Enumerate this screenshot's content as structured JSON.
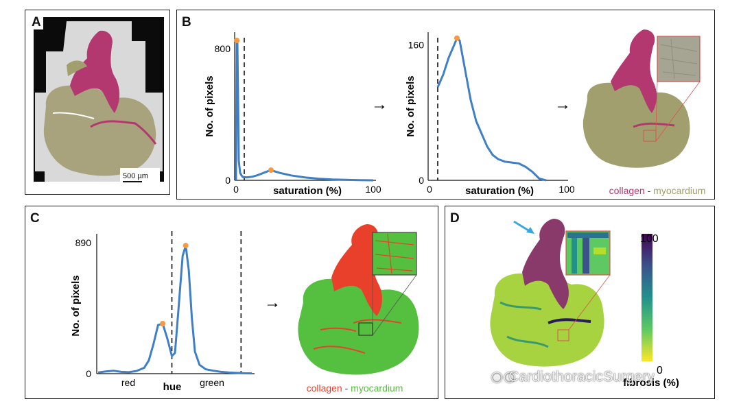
{
  "figure": {
    "panel_labels": {
      "a": "A",
      "b": "B",
      "c": "C",
      "d": "D"
    },
    "arrow_glyph": "→",
    "colors": {
      "collagen_pink": "#b2386f",
      "myocardium_olive": "#a19f6e",
      "collagen_red": "#e8402a",
      "myocardium_green": "#55c03f",
      "curve_blue": "#3f7fc5",
      "peak_orange": "#f59a42"
    }
  },
  "panel_a": {
    "scale_bar": "500 µm"
  },
  "panel_b": {
    "legend_collagen": "collagen",
    "legend_sep": " - ",
    "legend_myocardium": "myocardium"
  },
  "panel_c": {
    "legend_collagen": "collagen",
    "legend_sep": " - ",
    "legend_myocardium": "myocardium"
  },
  "panel_d": {
    "colorbar_max": "100",
    "colorbar_min": "0",
    "colorbar_label": "fibrosis (%)"
  },
  "watermark": {
    "text": "CardiothoracicSurgery"
  },
  "chart_data": [
    {
      "type": "line",
      "panel": "B-left",
      "title": "",
      "xlabel": "saturation (%)",
      "ylabel": "No. of pixels",
      "xlim": [
        0,
        100
      ],
      "ylim": [
        0,
        900
      ],
      "x_ticks": [
        "0",
        "100"
      ],
      "y_ticks": [
        "0",
        "800"
      ],
      "threshold_x": 6,
      "series": [
        {
          "name": "saturation histogram",
          "x": [
            0,
            0.5,
            1,
            1.5,
            2,
            3,
            4,
            5,
            8,
            12,
            16,
            20,
            24,
            26,
            28,
            32,
            40,
            50,
            60,
            70,
            80,
            90,
            100
          ],
          "y": [
            0,
            850,
            830,
            500,
            120,
            45,
            30,
            20,
            18,
            22,
            32,
            45,
            58,
            62,
            55,
            45,
            30,
            18,
            10,
            5,
            3,
            1,
            0
          ]
        }
      ],
      "peaks": [
        {
          "x": 0.6,
          "y": 850
        },
        {
          "x": 25.5,
          "y": 62
        }
      ]
    },
    {
      "type": "line",
      "panel": "B-middle",
      "title": "",
      "xlabel": "saturation (%)",
      "ylabel": "No. of pixels",
      "xlim": [
        0,
        100
      ],
      "ylim": [
        0,
        175
      ],
      "x_ticks": [
        "0",
        "100"
      ],
      "y_ticks": [
        "0",
        "160"
      ],
      "threshold_x": 6,
      "series": [
        {
          "name": "saturation histogram (after threshold)",
          "x": [
            6,
            10,
            14,
            18,
            20,
            22,
            26,
            30,
            34,
            38,
            42,
            46,
            50,
            55,
            60,
            65,
            70,
            75,
            80,
            85
          ],
          "y": [
            110,
            125,
            145,
            160,
            168,
            165,
            130,
            95,
            70,
            55,
            40,
            30,
            25,
            22,
            21,
            20,
            16,
            10,
            2,
            0
          ]
        }
      ],
      "peaks": [
        {
          "x": 20,
          "y": 168
        }
      ]
    },
    {
      "type": "line",
      "panel": "C",
      "title": "",
      "xlabel": "hue",
      "ylabel": "No. of pixels",
      "ylim": [
        0,
        950
      ],
      "y_ticks": [
        "0",
        "890"
      ],
      "category_labels": [
        "red",
        "green"
      ],
      "threshold_positions": [
        0.48,
        0.93
      ],
      "series": [
        {
          "name": "hue histogram",
          "x": [
            0,
            0.05,
            0.1,
            0.15,
            0.2,
            0.25,
            0.3,
            0.33,
            0.36,
            0.39,
            0.42,
            0.45,
            0.48,
            0.5,
            0.52,
            0.55,
            0.57,
            0.59,
            0.61,
            0.63,
            0.66,
            0.7,
            0.75,
            0.8,
            0.85,
            0.9,
            0.95,
            1
          ],
          "y": [
            8,
            15,
            20,
            12,
            10,
            18,
            40,
            90,
            200,
            330,
            340,
            240,
            120,
            140,
            400,
            800,
            870,
            700,
            380,
            150,
            60,
            30,
            20,
            12,
            8,
            5,
            3,
            2
          ]
        }
      ],
      "peaks": [
        {
          "x": 0.42,
          "y": 340
        },
        {
          "x": 0.57,
          "y": 870
        }
      ]
    }
  ]
}
